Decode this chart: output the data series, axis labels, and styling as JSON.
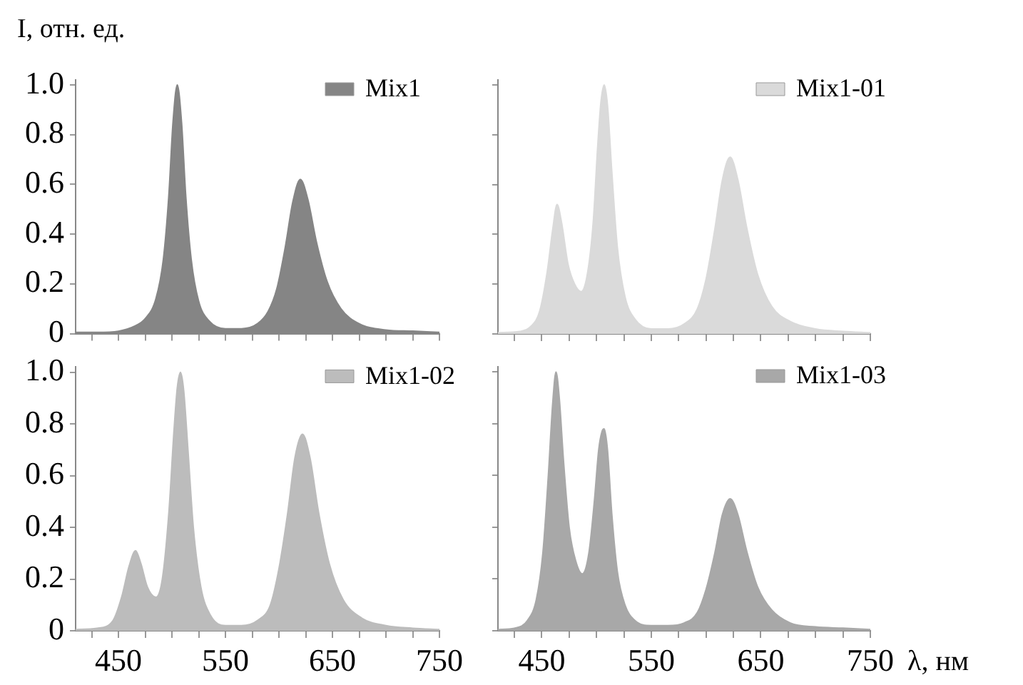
{
  "chart_data": [
    {
      "type": "area",
      "ylabel": "I, отн. ед.",
      "legend": "top right",
      "tick_labels": "y",
      "xlim": [
        410,
        750
      ],
      "xticks": [
        {
          "value": 425,
          "label": null
        },
        {
          "value": 450,
          "label": null
        },
        {
          "value": 475,
          "label": null
        },
        {
          "value": 500,
          "label": null
        },
        {
          "value": 525,
          "label": null
        },
        {
          "value": 550,
          "label": null
        },
        {
          "value": 575,
          "label": null
        },
        {
          "value": 600,
          "label": null
        },
        {
          "value": 625,
          "label": null
        },
        {
          "value": 650,
          "label": null
        },
        {
          "value": 675,
          "label": null
        },
        {
          "value": 700,
          "label": null
        },
        {
          "value": 725,
          "label": null
        },
        {
          "value": 750,
          "label": null
        }
      ],
      "ylim": [
        0,
        1.02
      ],
      "yticks": [
        0,
        0.2,
        0.4,
        0.6,
        0.8,
        {
          "value": 1,
          "label": "1.0"
        }
      ],
      "x": [
        410,
        430,
        450,
        465,
        475,
        485,
        492,
        497,
        501,
        505,
        509,
        513,
        518,
        525,
        535,
        550,
        565,
        580,
        590,
        598,
        606,
        613,
        620,
        627,
        635,
        645,
        658,
        675,
        700,
        725,
        750
      ],
      "series": [
        {
          "name": "Mix1",
          "color": "#858585",
          "values": [
            0.005,
            0.005,
            0.01,
            0.03,
            0.06,
            0.14,
            0.3,
            0.55,
            0.85,
            1.0,
            0.85,
            0.55,
            0.3,
            0.13,
            0.05,
            0.02,
            0.02,
            0.04,
            0.09,
            0.18,
            0.35,
            0.53,
            0.62,
            0.54,
            0.37,
            0.21,
            0.1,
            0.04,
            0.015,
            0.01,
            0.005
          ]
        }
      ]
    },
    {
      "type": "area",
      "legend": "top right",
      "tick_labels": false,
      "xlim": [
        410,
        750
      ],
      "xticks": [
        {
          "value": 425,
          "label": null
        },
        {
          "value": 450,
          "label": null
        },
        {
          "value": 475,
          "label": null
        },
        {
          "value": 500,
          "label": null
        },
        {
          "value": 525,
          "label": null
        },
        {
          "value": 550,
          "label": null
        },
        {
          "value": 575,
          "label": null
        },
        {
          "value": 600,
          "label": null
        },
        {
          "value": 625,
          "label": null
        },
        {
          "value": 650,
          "label": null
        },
        {
          "value": 675,
          "label": null
        },
        {
          "value": 700,
          "label": null
        },
        {
          "value": 725,
          "label": null
        },
        {
          "value": 750,
          "label": null
        }
      ],
      "ylim": [
        0,
        1.02
      ],
      "yticks": [
        {
          "value": 0,
          "label": null
        },
        {
          "value": 0.2,
          "label": null
        },
        {
          "value": 0.4,
          "label": null
        },
        {
          "value": 0.6,
          "label": null
        },
        {
          "value": 0.8,
          "label": null
        },
        {
          "value": 1,
          "label": null
        }
      ],
      "x": [
        410,
        430,
        440,
        448,
        455,
        460,
        464,
        468,
        474,
        480,
        486,
        492,
        497,
        501,
        504,
        507,
        510,
        514,
        519,
        526,
        535,
        550,
        565,
        580,
        592,
        600,
        608,
        615,
        622,
        629,
        637,
        647,
        660,
        677,
        700,
        725,
        750
      ],
      "series": [
        {
          "name": "Mix1-01",
          "color": "#dadada",
          "values": [
            0.005,
            0.01,
            0.03,
            0.09,
            0.25,
            0.42,
            0.52,
            0.45,
            0.28,
            0.2,
            0.17,
            0.25,
            0.45,
            0.75,
            0.93,
            1.0,
            0.92,
            0.65,
            0.35,
            0.15,
            0.06,
            0.02,
            0.02,
            0.04,
            0.1,
            0.22,
            0.42,
            0.62,
            0.71,
            0.62,
            0.43,
            0.24,
            0.11,
            0.05,
            0.02,
            0.01,
            0.005
          ]
        }
      ]
    },
    {
      "type": "area",
      "legend": "top right",
      "xlim": [
        410,
        750
      ],
      "xticks": [
        {
          "value": 425,
          "label": null
        },
        450,
        {
          "value": 475,
          "label": null
        },
        {
          "value": 500,
          "label": null
        },
        {
          "value": 525,
          "label": null
        },
        550,
        {
          "value": 575,
          "label": null
        },
        {
          "value": 600,
          "label": null
        },
        {
          "value": 625,
          "label": null
        },
        650,
        {
          "value": 675,
          "label": null
        },
        {
          "value": 700,
          "label": null
        },
        {
          "value": 725,
          "label": null
        },
        750
      ],
      "ylim": [
        0,
        1.02
      ],
      "yticks": [
        0,
        0.2,
        0.4,
        0.6,
        0.8,
        {
          "value": 1,
          "label": "1.0"
        }
      ],
      "x": [
        410,
        430,
        445,
        453,
        460,
        466,
        471,
        477,
        485,
        491,
        497,
        502,
        505,
        508,
        511,
        515,
        520,
        527,
        536,
        550,
        565,
        580,
        592,
        600,
        608,
        615,
        622,
        629,
        637,
        647,
        660,
        677,
        700,
        725,
        750
      ],
      "series": [
        {
          "name": "Mix1-02",
          "color": "#bcbcbc",
          "values": [
            0.005,
            0.01,
            0.04,
            0.13,
            0.25,
            0.31,
            0.26,
            0.17,
            0.13,
            0.2,
            0.45,
            0.78,
            0.94,
            1.0,
            0.93,
            0.7,
            0.4,
            0.17,
            0.06,
            0.02,
            0.02,
            0.04,
            0.1,
            0.24,
            0.45,
            0.67,
            0.76,
            0.67,
            0.46,
            0.26,
            0.12,
            0.05,
            0.02,
            0.01,
            0.005
          ]
        }
      ]
    },
    {
      "type": "area",
      "legend": "top right",
      "tick_labels": "x",
      "xlabel": "λ, нм",
      "xlim": [
        410,
        750
      ],
      "xticks": [
        {
          "value": 425,
          "label": null
        },
        450,
        {
          "value": 475,
          "label": null
        },
        {
          "value": 500,
          "label": null
        },
        {
          "value": 525,
          "label": null
        },
        550,
        {
          "value": 575,
          "label": null
        },
        {
          "value": 600,
          "label": null
        },
        {
          "value": 625,
          "label": null
        },
        650,
        {
          "value": 675,
          "label": null
        },
        {
          "value": 700,
          "label": null
        },
        {
          "value": 725,
          "label": null
        },
        750
      ],
      "ylim": [
        0,
        1.02
      ],
      "yticks": [
        {
          "value": 0,
          "label": null
        },
        {
          "value": 0.2,
          "label": null
        },
        {
          "value": 0.4,
          "label": null
        },
        {
          "value": 0.6,
          "label": null
        },
        {
          "value": 0.8,
          "label": null
        },
        {
          "value": 1,
          "label": null
        }
      ],
      "x": [
        410,
        425,
        437,
        445,
        451,
        456,
        460,
        463,
        466,
        470,
        475,
        481,
        487,
        493,
        498,
        502,
        505,
        507,
        510,
        514,
        519,
        526,
        535,
        550,
        565,
        580,
        592,
        600,
        608,
        615,
        622,
        629,
        637,
        647,
        660,
        677,
        700,
        725,
        750
      ],
      "series": [
        {
          "name": "Mix1-03",
          "color": "#a8a8a8",
          "values": [
            0.005,
            0.01,
            0.04,
            0.12,
            0.3,
            0.6,
            0.88,
            1.0,
            0.9,
            0.65,
            0.4,
            0.27,
            0.22,
            0.3,
            0.5,
            0.7,
            0.77,
            0.78,
            0.7,
            0.45,
            0.23,
            0.1,
            0.04,
            0.02,
            0.02,
            0.03,
            0.07,
            0.16,
            0.3,
            0.45,
            0.51,
            0.45,
            0.31,
            0.17,
            0.08,
            0.03,
            0.015,
            0.01,
            0.005
          ]
        }
      ]
    }
  ]
}
